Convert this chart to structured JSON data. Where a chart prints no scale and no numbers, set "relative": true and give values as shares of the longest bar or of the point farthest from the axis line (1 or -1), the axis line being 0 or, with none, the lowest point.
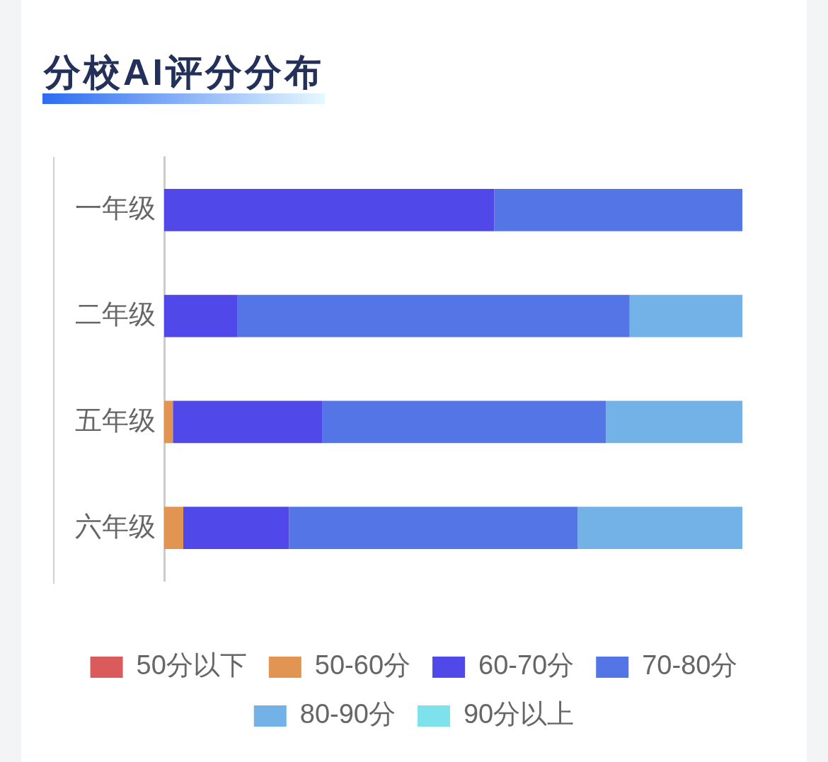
{
  "chart_data": {
    "type": "bar",
    "title": "分校AI评分分布",
    "orientation": "horizontal",
    "stacked": true,
    "relative": true,
    "legend": "bottom",
    "categories": [
      "一年级",
      "二年级",
      "五年级",
      "六年级"
    ],
    "series": [
      {
        "name": "50分以下",
        "color": "#d95b5b",
        "values": [
          null,
          null,
          null,
          null
        ]
      },
      {
        "name": "50-60分",
        "color": "#e29553",
        "values": [
          null,
          null,
          0.015,
          0.033
        ]
      },
      {
        "name": "60-70分",
        "color": "#5048e8",
        "values": [
          0.571,
          0.127,
          0.258,
          0.183
        ]
      },
      {
        "name": "70-80分",
        "color": "#5475e6",
        "values": [
          0.429,
          0.678,
          0.491,
          0.499
        ]
      },
      {
        "name": "80-90分",
        "color": "#73b2e6",
        "values": [
          null,
          0.195,
          0.236,
          0.285
        ]
      },
      {
        "name": "90分以上",
        "color": "#7de2ec",
        "values": [
          null,
          null,
          null,
          null
        ]
      }
    ]
  }
}
